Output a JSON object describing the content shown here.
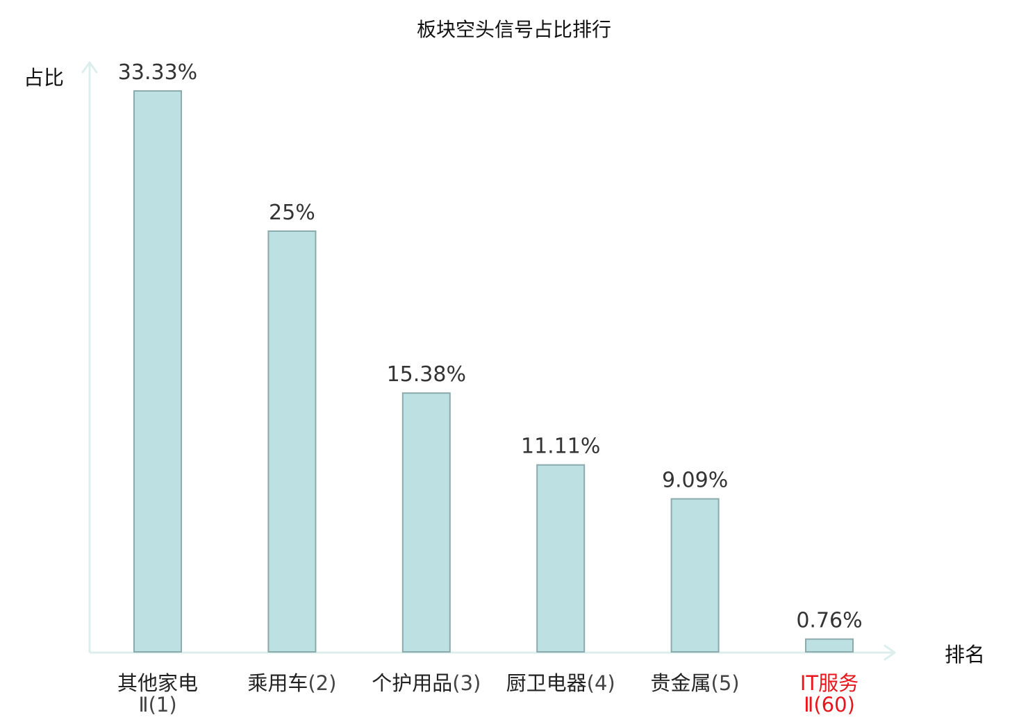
{
  "chart_data": {
    "type": "bar",
    "title": "板块空头信号占比排行",
    "ylabel": "占比",
    "xlabel": "排名",
    "categories": [
      {
        "name": "其他家电",
        "rank": "Ⅱ(1)",
        "highlight": false
      },
      {
        "name": "乘用车",
        "rank": "(2)",
        "highlight": false
      },
      {
        "name": "个护用品",
        "rank": "(3)",
        "highlight": false
      },
      {
        "name": "厨卫电器",
        "rank": "(4)",
        "highlight": false
      },
      {
        "name": "贵金属",
        "rank": "(5)",
        "highlight": false
      },
      {
        "name": "IT服务",
        "rank": "Ⅱ(60)",
        "highlight": true
      }
    ],
    "values": [
      33.33,
      25,
      15.38,
      11.11,
      9.09,
      0.76
    ],
    "value_labels": [
      "33.33%",
      "25%",
      "15.38%",
      "11.11%",
      "9.09%",
      "0.76%"
    ],
    "ylim": [
      0,
      36
    ],
    "unit": "%",
    "grid": false,
    "colors": {
      "bar_fill": "#bde0e2",
      "bar_stroke": "#8aaaab",
      "axis": "#dcefec",
      "label": "#222222",
      "value_label": "#333333",
      "highlight": "#e8161c",
      "rank_label": "#444444"
    }
  }
}
